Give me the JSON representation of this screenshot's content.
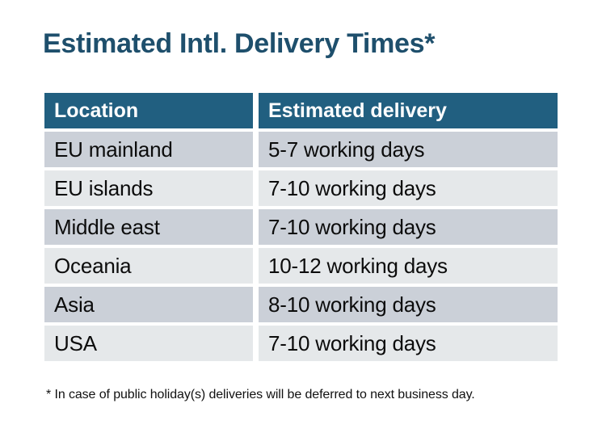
{
  "title": {
    "text": "Estimated Intl. Delivery Times*",
    "color": "#1E4F6C"
  },
  "table": {
    "columns": [
      "Location",
      "Estimated delivery"
    ],
    "rows": [
      {
        "location": "EU mainland",
        "delivery": "5-7 working days"
      },
      {
        "location": "EU islands",
        "delivery": "7-10 working days"
      },
      {
        "location": "Middle east",
        "delivery": "7-10 working days"
      },
      {
        "location": "Oceania",
        "delivery": "10-12 working days"
      },
      {
        "location": "Asia",
        "delivery": "8-10 working days"
      },
      {
        "location": "USA",
        "delivery": "7-10 working days"
      }
    ],
    "colors": {
      "header_bg": "#215F80",
      "header_text": "#FFFFFF",
      "row_dark": "#CBD0D8",
      "row_light": "#E5E8EA",
      "cell_text": "#0C0C0C",
      "background": "#FFFFFF"
    }
  },
  "footnote": {
    "text": "* In case of public holiday(s) deliveries will be deferred to next business day."
  }
}
